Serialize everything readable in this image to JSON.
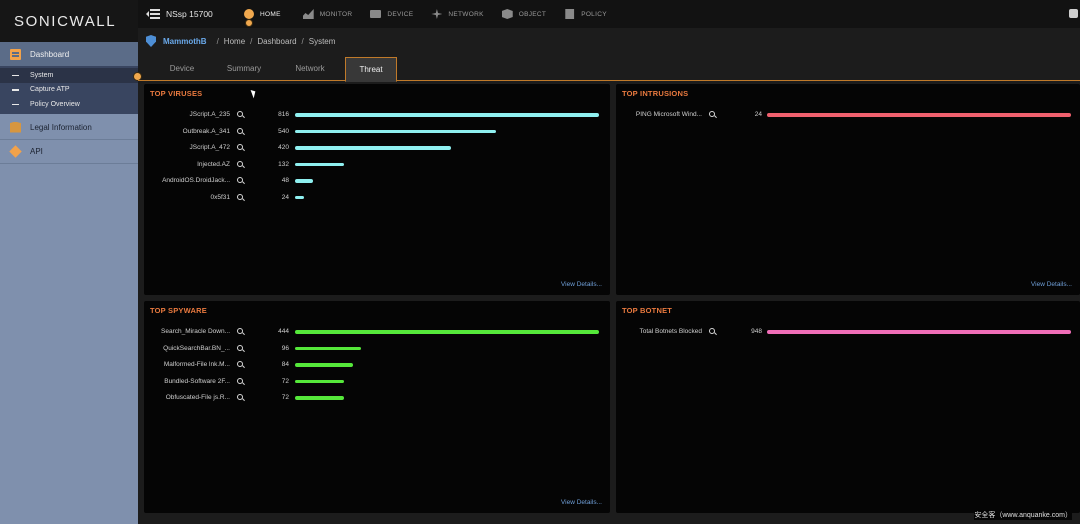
{
  "brand": {
    "logo_text": "SONICWALL"
  },
  "sidebar": {
    "dashboard_label": "Dashboard",
    "sub_items": [
      "System",
      "Capture ATP",
      "Policy Overview"
    ],
    "legal_label": "Legal Information",
    "api_label": "API"
  },
  "topbar": {
    "device_name": "NSsp 15700",
    "nav": [
      "HOME",
      "MONITOR",
      "DEVICE",
      "NETWORK",
      "OBJECT",
      "POLICY"
    ]
  },
  "breadcrumb": {
    "device": "MammothB",
    "path": [
      "Home",
      "Dashboard",
      "System"
    ]
  },
  "tabs": [
    "Device",
    "Summary",
    "Network",
    "Threat"
  ],
  "active_tab": "Threat",
  "panels": {
    "viruses": {
      "title": "TOP VIRUSES",
      "link": "View Details...",
      "color": "#8ff0f0",
      "max": 816,
      "rows": [
        {
          "label": "JScript.A_235",
          "value": 816
        },
        {
          "label": "Outbreak.A_341",
          "value": 540
        },
        {
          "label": "JScript.A_472",
          "value": 420
        },
        {
          "label": "Injected.AZ",
          "value": 132
        },
        {
          "label": "AndroidOS.DroidJack...",
          "value": 48
        },
        {
          "label": "0x5f31",
          "value": 24
        }
      ]
    },
    "intrusions": {
      "title": "TOP INTRUSIONS",
      "link": "View Details...",
      "color": "#f0606e",
      "max": 24,
      "rows": [
        {
          "label": "PING Microsoft Wind...",
          "value": 24
        }
      ]
    },
    "spyware": {
      "title": "TOP SPYWARE",
      "link": "View Details...",
      "color": "#55e83a",
      "max": 444,
      "rows": [
        {
          "label": "Search_Miracle Down...",
          "value": 444
        },
        {
          "label": "QuickSearchBar.BN_...",
          "value": 96
        },
        {
          "label": "Malformed-File lnk.M...",
          "value": 84
        },
        {
          "label": "Bundled-Software 2F...",
          "value": 72
        },
        {
          "label": "Obfuscated-File js.R...",
          "value": 72
        }
      ]
    },
    "botnet": {
      "title": "TOP BOTNET",
      "link": "",
      "color": "#f06eb8",
      "max": 948,
      "rows": [
        {
          "label": "Total Botnets Blocked",
          "value": 948
        }
      ]
    }
  },
  "watermark": "安全客（www.anquanke.com）"
}
